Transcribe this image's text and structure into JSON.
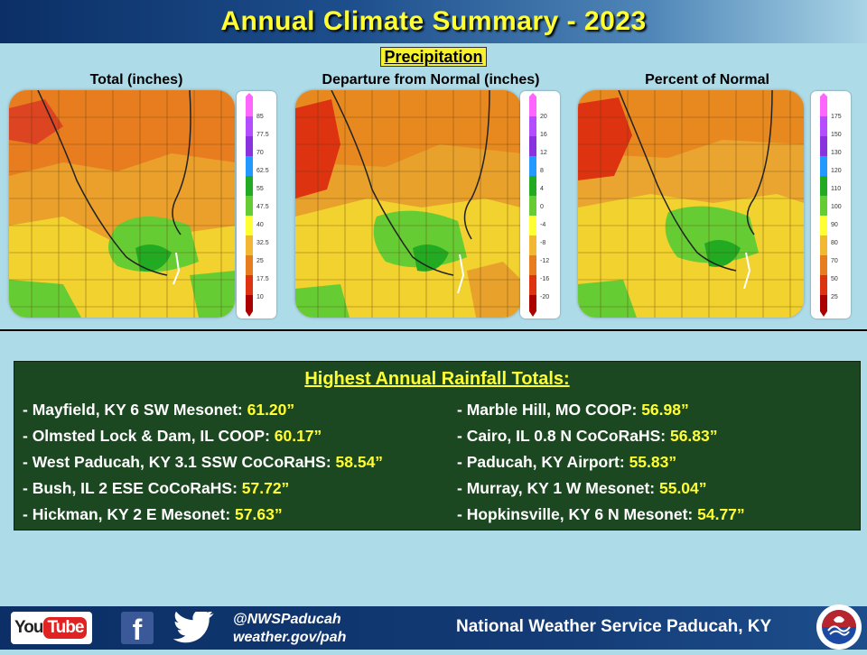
{
  "header": {
    "title": "Annual Climate Summary - 2023"
  },
  "section_label": "Precipitation",
  "maps": [
    {
      "title": "Total (inches)",
      "legend_labels": [
        "85",
        "77.5",
        "70",
        "62.5",
        "55",
        "47.5",
        "40",
        "32.5",
        "25",
        "17.5",
        "10"
      ]
    },
    {
      "title": "Departure from Normal (inches)",
      "legend_labels": [
        "20",
        "16",
        "12",
        "8",
        "4",
        "0",
        "-4",
        "-8",
        "-12",
        "-16",
        "-20"
      ]
    },
    {
      "title": "Percent of Normal",
      "legend_labels": [
        "175",
        "150",
        "130",
        "120",
        "110",
        "100",
        "90",
        "80",
        "70",
        "50",
        "25"
      ]
    }
  ],
  "legend_colors": [
    "#ff66ff",
    "#b44cff",
    "#8833dd",
    "#2299ff",
    "#22aa22",
    "#66cc33",
    "#ffff33",
    "#f2b833",
    "#e87d1f",
    "#dd3311",
    "#aa0000"
  ],
  "rainfall": {
    "title": "Highest Annual Rainfall Totals:",
    "left": [
      {
        "station": "- Mayfield, KY 6 SW Mesonet: ",
        "value": "61.20”"
      },
      {
        "station": "- Olmsted Lock & Dam, IL COOP: ",
        "value": "60.17”"
      },
      {
        "station": "- West Paducah, KY 3.1 SSW CoCoRaHS: ",
        "value": "58.54”"
      },
      {
        "station": "- Bush, IL 2 ESE CoCoRaHS: ",
        "value": "57.72”"
      },
      {
        "station": "- Hickman, KY 2 E Mesonet: ",
        "value": "57.63”"
      }
    ],
    "right": [
      {
        "station": "- Marble Hill, MO COOP: ",
        "value": "56.98”"
      },
      {
        "station": "- Cairo, IL 0.8 N CoCoRaHS: ",
        "value": "56.83”"
      },
      {
        "station": "- Paducah, KY Airport: ",
        "value": "55.83”"
      },
      {
        "station": "- Murray, KY 1 W Mesonet: ",
        "value": "55.04”"
      },
      {
        "station": "- Hopkinsville, KY 6 N Mesonet: ",
        "value": "54.77”"
      }
    ]
  },
  "footer": {
    "youtube_you": "You",
    "youtube_tube": "Tube",
    "facebook_glyph": "f",
    "handle": "@NWSPaducah",
    "website": "weather.gov/pah",
    "office": "National Weather Service Paducah, KY",
    "icons": [
      "youtube-icon",
      "facebook-icon",
      "twitter-icon",
      "nws-logo-icon"
    ]
  }
}
